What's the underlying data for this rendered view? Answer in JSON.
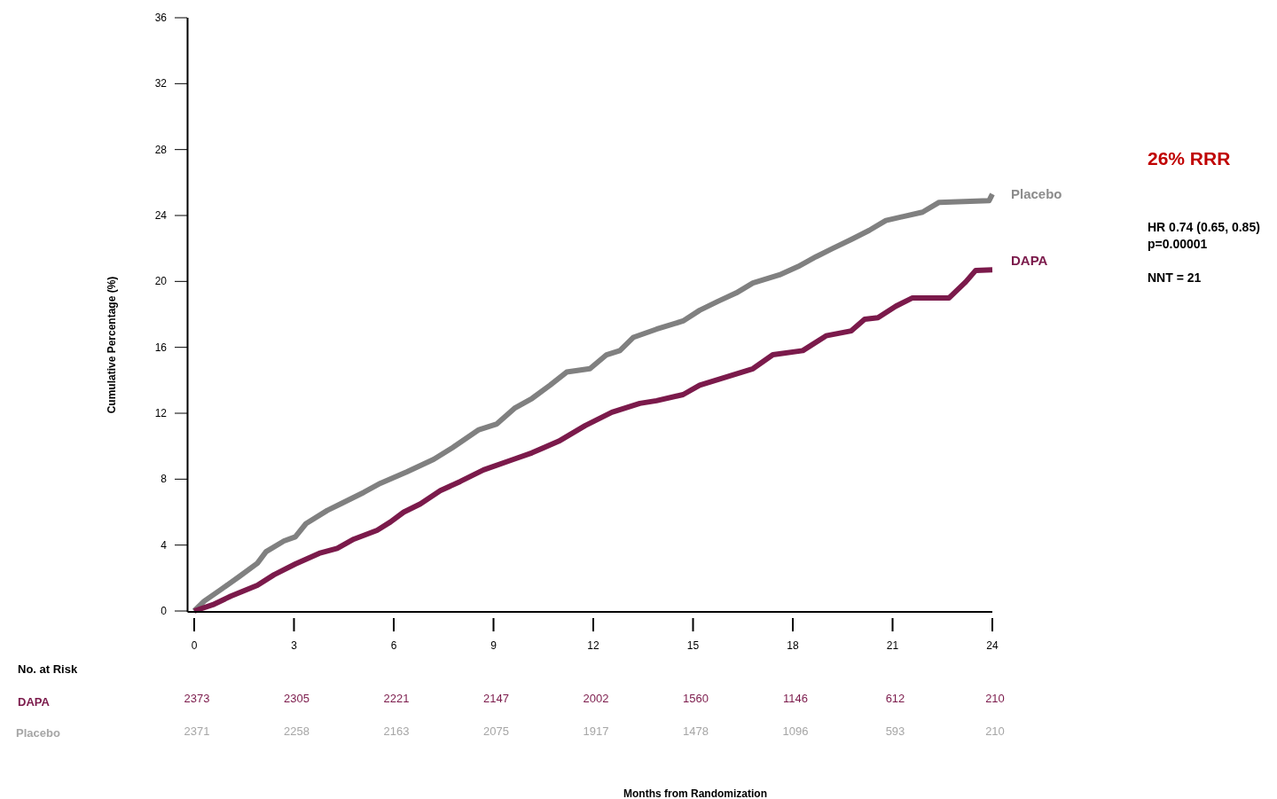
{
  "chart_data": {
    "type": "line",
    "ylabel": "Cumulative Percentage (%)",
    "xlim": [
      -0.2,
      24
    ],
    "xticks": [
      0,
      3,
      6,
      9,
      12,
      15,
      18,
      21,
      24
    ],
    "ylim": [
      0,
      36
    ],
    "yticks": [
      0,
      4,
      8,
      12,
      16,
      20,
      24,
      28,
      32,
      36
    ],
    "marker": "none",
    "line_style": "solid",
    "series": [
      {
        "name": "Placebo",
        "color": "#808080",
        "x": [
          0,
          0.3,
          0.8,
          1.36,
          1.9,
          2.16,
          2.7,
          3.04,
          3.36,
          4.0,
          4.4,
          5.1,
          5.6,
          6.4,
          7.2,
          7.76,
          8.56,
          9.1,
          9.63,
          10.16,
          10.7,
          11.2,
          11.9,
          12.4,
          12.8,
          13.2,
          13.9,
          14.7,
          15.2,
          15.76,
          16.3,
          16.8,
          17.6,
          18.16,
          18.7,
          19.2,
          19.76,
          20.3,
          20.8,
          21.9,
          22.4,
          23.9,
          24
        ],
        "values": [
          0,
          0.6,
          1.3,
          2.1,
          2.9,
          3.6,
          4.25,
          4.5,
          5.3,
          6.1,
          6.5,
          7.2,
          7.75,
          8.45,
          9.2,
          9.9,
          11,
          11.35,
          12.3,
          12.9,
          13.7,
          14.5,
          14.7,
          15.55,
          15.8,
          16.6,
          17.1,
          17.6,
          18.25,
          18.8,
          19.3,
          19.9,
          20.4,
          20.9,
          21.5,
          22,
          22.55,
          23.1,
          23.7,
          24.2,
          24.8,
          24.9,
          25.3
        ]
      },
      {
        "name": "DAPA",
        "color": "#7b1a4b",
        "x": [
          0,
          0.56,
          1.1,
          1.9,
          2.4,
          3.04,
          3.76,
          4.3,
          4.8,
          5.5,
          5.9,
          6.3,
          6.8,
          7.4,
          8.0,
          8.7,
          9.6,
          10.16,
          10.96,
          11.76,
          12.56,
          13.4,
          13.9,
          14.7,
          15.2,
          16.0,
          16.8,
          17.4,
          18.3,
          19.0,
          19.76,
          20.16,
          20.56,
          21.1,
          21.6,
          22.7,
          23.2,
          23.5,
          24
        ],
        "values": [
          0,
          0.38,
          0.9,
          1.56,
          2.2,
          2.85,
          3.5,
          3.8,
          4.36,
          4.9,
          5.4,
          6,
          6.5,
          7.3,
          7.86,
          8.56,
          9.2,
          9.6,
          10.3,
          11.25,
          12.06,
          12.6,
          12.76,
          13.13,
          13.7,
          14.2,
          14.7,
          15.55,
          15.8,
          16.7,
          17,
          17.7,
          17.8,
          18.5,
          19,
          19,
          19.97,
          20.67,
          20.7
        ]
      }
    ],
    "annotations": [
      "26% RRR",
      "HR 0.74 (0.65, 0.85)",
      "p=0.00001",
      "NNT = 21",
      "No. at Risk",
      "Months from Randomization",
      "2373",
      "2305",
      "2221",
      "2147",
      "2002",
      "1560",
      "1146",
      "612",
      "210",
      "2371",
      "2258",
      "2163",
      "2075",
      "1917",
      "1478",
      "1096",
      "593",
      "210"
    ]
  }
}
